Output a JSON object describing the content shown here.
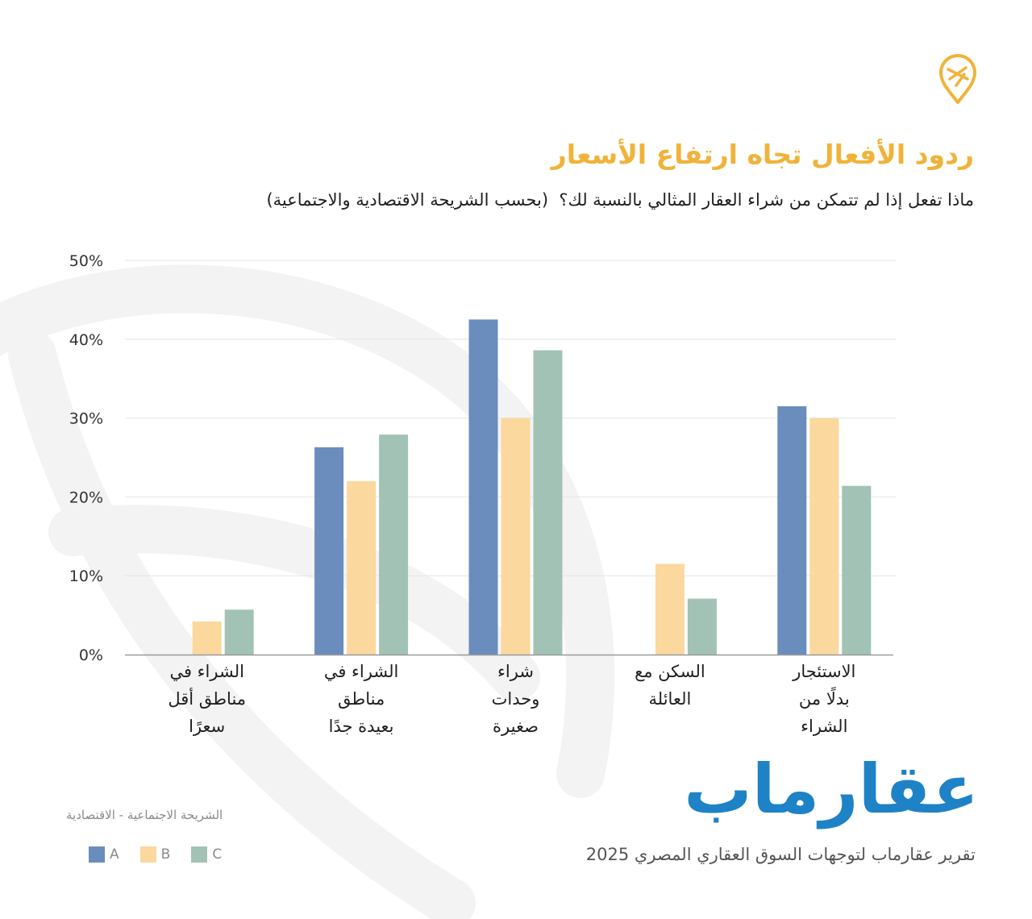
{
  "header": {
    "title": "ردود الأفعال تجاه ارتفاع الأسعار",
    "subtitle": "ماذا تفعل إذا لم تتمكن من شراء العقار المثالي بالنسبة لك؟  (بحسب الشريحة الاقتصادية والاجتماعية)"
  },
  "brand": {
    "name": "عقارماب",
    "report": "تقرير عقارماب لتوجهات السوق العقاري المصري 2025",
    "color": "#1e82c6",
    "accent": "#f0b33a",
    "logo_icon": "map-pin-icon"
  },
  "legend": {
    "title": "الشريحة الاجتماعية - الاقتصادية",
    "items": [
      {
        "label": "A",
        "color": "#6a8dbe"
      },
      {
        "label": "B",
        "color": "#fbd89e"
      },
      {
        "label": "C",
        "color": "#a2c2b5"
      }
    ]
  },
  "chart_data": {
    "type": "bar",
    "title": "ردود الأفعال تجاه ارتفاع الأسعار",
    "subtitle": "ماذا تفعل إذا لم تتمكن من شراء العقار المثالي بالنسبة لك؟  (بحسب الشريحة الاقتصادية والاجتماعية)",
    "categories": [
      [
        "الشراء في",
        "مناطق أقل",
        "سعرًا"
      ],
      [
        "الشراء في",
        "مناطق",
        "بعيدة جدًا"
      ],
      [
        "شراء",
        "وحدات",
        "صغيرة"
      ],
      [
        "السكن مع",
        "العائلة"
      ],
      [
        "الاستئجار",
        "بدلًا من",
        "الشراء"
      ]
    ],
    "series": [
      {
        "name": "A",
        "color": "#6a8dbe",
        "values": [
          0,
          26.3,
          42.5,
          0,
          31.5
        ]
      },
      {
        "name": "B",
        "color": "#fbd89e",
        "values": [
          4.2,
          22,
          30,
          11.5,
          30
        ]
      },
      {
        "name": "C",
        "color": "#a2c2b5",
        "values": [
          5.7,
          27.9,
          38.6,
          7.1,
          21.4
        ]
      }
    ],
    "yticks": [
      "0%",
      "10%",
      "20%",
      "30%",
      "40%",
      "50%"
    ],
    "ylim": [
      0,
      50
    ],
    "xlabel": "",
    "ylabel": "",
    "grid": true,
    "legend_position": "bottom-left"
  }
}
